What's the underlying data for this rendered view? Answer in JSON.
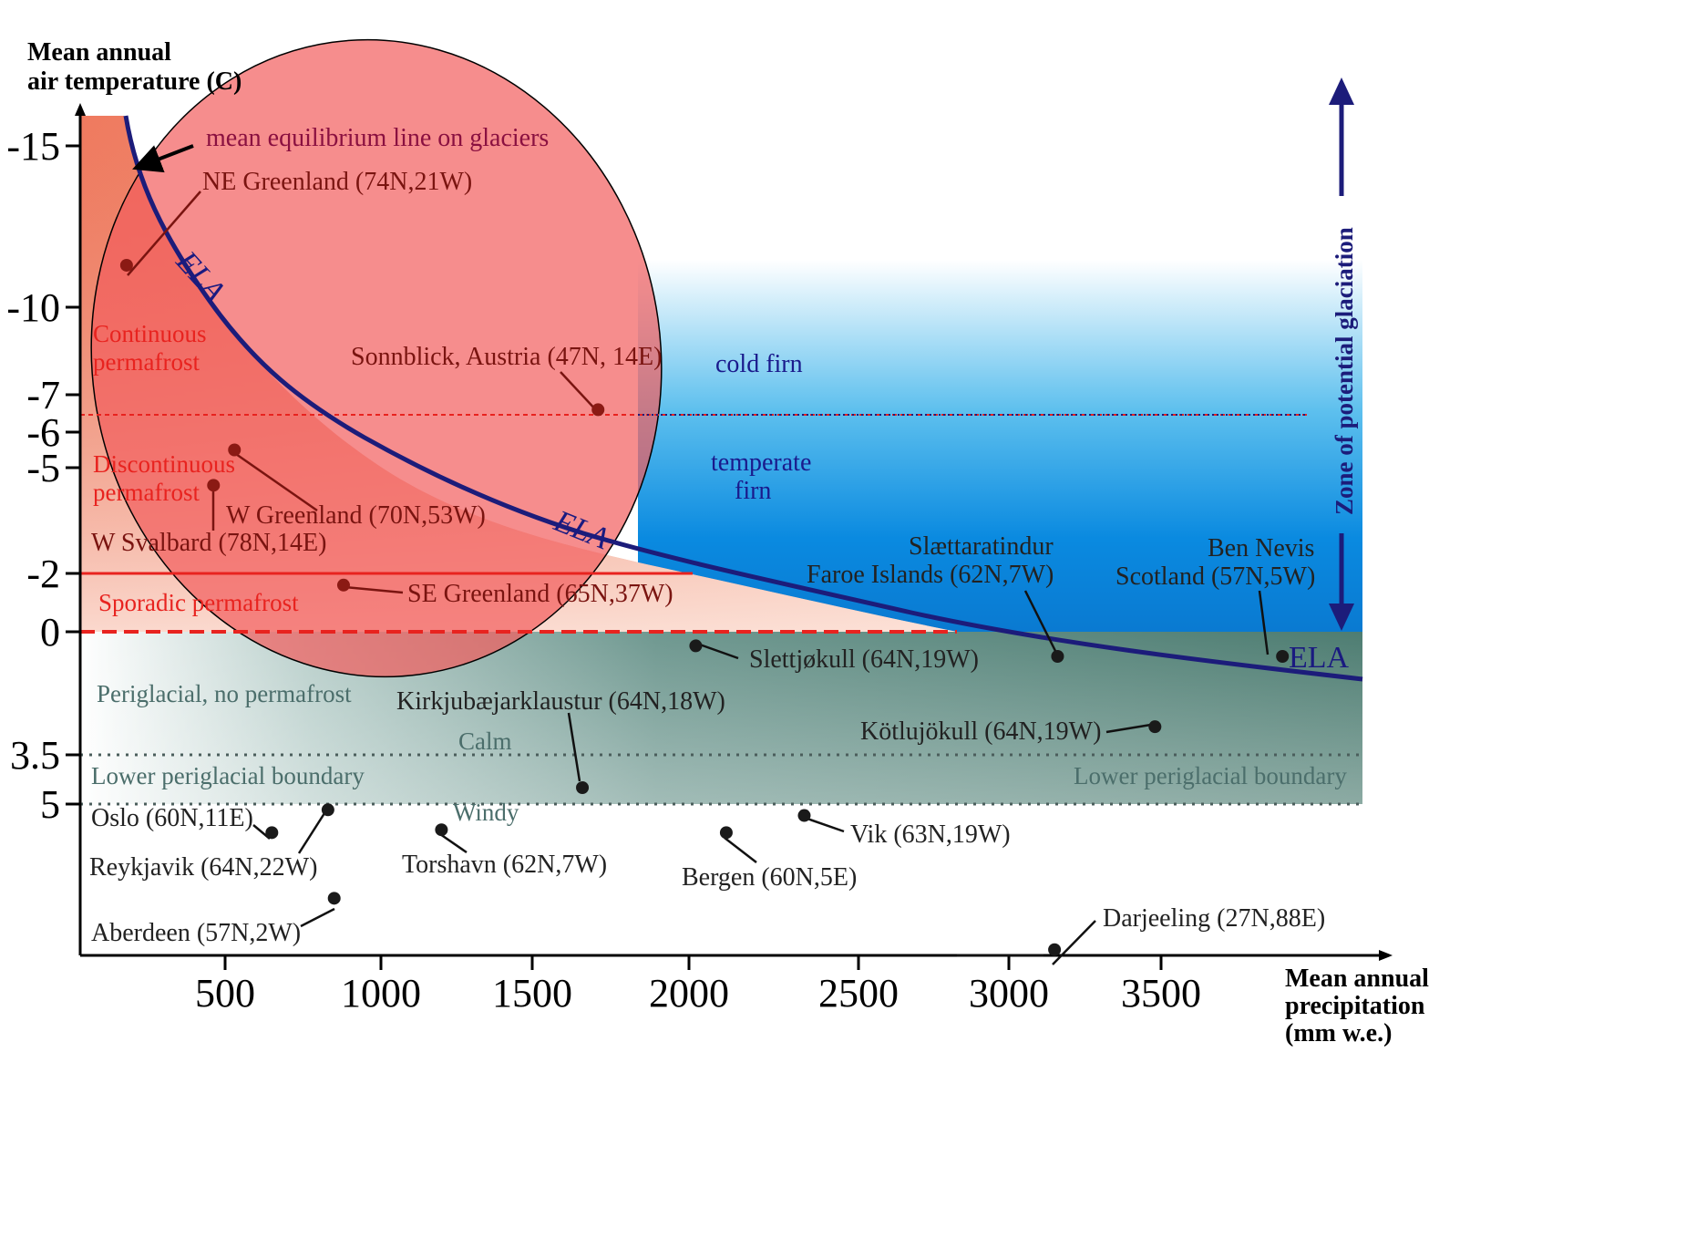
{
  "chart_data": {
    "type": "scatter",
    "title": "",
    "ylabel_lines": [
      "Mean annual",
      "air temperature (C)"
    ],
    "xlabel_lines": [
      "Mean annual",
      "precipitation",
      "(mm w.e.)"
    ],
    "x_ticks": [
      "500",
      "1000",
      "1500",
      "2000",
      "2500",
      "3000",
      "3500"
    ],
    "y_ticks": [
      "-15",
      "-10",
      "-7",
      "-6",
      "-5",
      "-2",
      "0",
      "3.5",
      "5"
    ],
    "xlim": [
      0,
      4100
    ],
    "zones": {
      "continuous": "Continuous permafrost",
      "continuous_lines": [
        "Continuous",
        "permafrost"
      ],
      "discontinuous_lines": [
        "Discontinuous",
        "permafrost"
      ],
      "sporadic": "Sporadic permafrost",
      "periglacial": "Periglacial, no permafrost",
      "lower_boundary_left": "Lower periglacial boundary",
      "lower_boundary_right": "Lower periglacial boundary",
      "calm": "Calm",
      "windy": "Windy",
      "cold_firn": "cold firn",
      "temperate_firn_lines": [
        "temperate",
        "firn"
      ],
      "potential_glaciation": "Zone of potential glaciation"
    },
    "ela": {
      "label": "ELA",
      "annotation": "mean equilibrium line on glaciers",
      "points": [
        [
          160,
          -16
        ],
        [
          200,
          -14
        ],
        [
          300,
          -12.5
        ],
        [
          420,
          -11
        ],
        [
          600,
          -9
        ],
        [
          800,
          -7
        ],
        [
          1100,
          -5.5
        ],
        [
          1500,
          -4
        ],
        [
          2000,
          -2.8
        ],
        [
          2500,
          -1.6
        ],
        [
          3000,
          -0.6
        ],
        [
          3500,
          0.3
        ],
        [
          4000,
          1.2
        ]
      ]
    },
    "sites": [
      {
        "name": "NE Greenland (74N,21W)",
        "x": 160,
        "y": -11.3
      },
      {
        "name": "Sonnblick, Austria (47N, 14E)",
        "x": 1710,
        "y": -6.6
      },
      {
        "name": "W Greenland (70N,53W)",
        "x": 530,
        "y": -5.5
      },
      {
        "name": "W Svalbard (78N,14E)",
        "x": 460,
        "y": -4.5
      },
      {
        "name": "SE Greenland (65N,37W)",
        "x": 880,
        "y": -1.6
      },
      {
        "name": "Slettjøkull (64N,19W)",
        "x": 2020,
        "y": 0.4
      },
      {
        "name": "Slættaratindur Faroe Islands (62N,7W)",
        "x": 3160,
        "y": 0.7
      },
      {
        "name": "Ben Nevis Scotland (57N,5W)",
        "x": 3870,
        "y": 0.7
      },
      {
        "name": "Kirkjubæjarklaustur (64N,18W)",
        "x": 1660,
        "y": 4.5
      },
      {
        "name": "Kötlujökull (64N,19W)",
        "x": 3480,
        "y": 2.7
      },
      {
        "name": "Oslo (60N,11E)",
        "x": 650,
        "y": 6.0
      },
      {
        "name": "Reykjavik (64N,22W)",
        "x": 830,
        "y": 5.2
      },
      {
        "name": "Torshavn (62N,7W)",
        "x": 1200,
        "y": 5.9
      },
      {
        "name": "Bergen (60N,5E)",
        "x": 2110,
        "y": 6.0
      },
      {
        "name": "Vik (63N,19W)",
        "x": 2340,
        "y": 5.4
      },
      {
        "name": "Aberdeen (57N,2W)",
        "x": 850,
        "y": 8.3
      },
      {
        "name": "Darjeeling (27N,88E)",
        "x": 3150,
        "y": 10.1
      }
    ],
    "site_labels": {
      "ne_greenland": "NE Greenland (74N,21W)",
      "sonnblick": "Sonnblick, Austria (47N, 14E)",
      "w_greenland": "W Greenland (70N,53W)",
      "w_svalbard": "W Svalbard (78N,14E)",
      "se_greenland": "SE Greenland (65N,37W)",
      "slettjokull": "Slettjøkull (64N,19W)",
      "slaettaratindur_lines": [
        "Slættaratindur",
        "Faroe Islands (62N,7W)"
      ],
      "ben_nevis_lines": [
        "Ben Nevis",
        "Scotland (57N,5W)"
      ],
      "kirkjubaejar": "Kirkjubæjarklaustur (64N,18W)",
      "kotlujokull": "Kötlujökull (64N,19W)",
      "oslo": "Oslo (60N,11E)",
      "reykjavik": "Reykjavik (64N,22W)",
      "torshavn": "Torshavn (62N,7W)",
      "bergen": "Bergen (60N,5E)",
      "vik": "Vik (63N,19W)",
      "aberdeen": "Aberdeen (57N,2W)",
      "darjeeling": "Darjeeling (27N,88E)"
    },
    "colors": {
      "ela_line": "#1c1c7a",
      "permafrost_red": "#e8231f",
      "site_dot": "#1a1a1a",
      "site_dot_dark_red": "#8b1a14",
      "glacier_blue": "#0a86d8",
      "periglacial_green": "#4e7d72",
      "circle_fill": "#f25c5c"
    }
  }
}
